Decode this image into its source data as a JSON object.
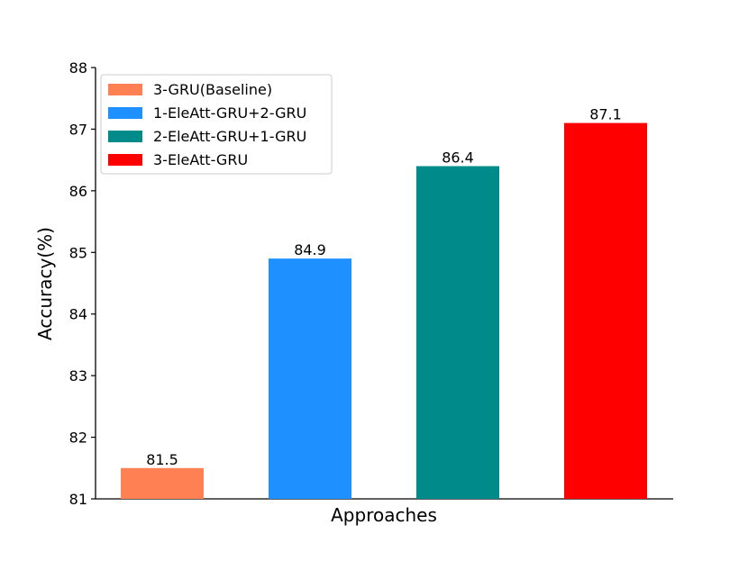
{
  "chart_data": {
    "type": "bar",
    "xlabel": "Approaches",
    "ylabel": "Accuracy(%)",
    "ylim": [
      81,
      88
    ],
    "yticks": [
      81,
      82,
      83,
      84,
      85,
      86,
      87,
      88
    ],
    "grid": false,
    "legend_position": "top-left",
    "series": [
      {
        "name": "3-GRU(Baseline)",
        "value": 81.5,
        "value_label": "81.5",
        "color": "#ff8153"
      },
      {
        "name": "1-EleAtt-GRU+2-GRU",
        "value": 84.9,
        "value_label": "84.9",
        "color": "#1e90ff"
      },
      {
        "name": "2-EleAtt-GRU+1-GRU",
        "value": 86.4,
        "value_label": "86.4",
        "color": "#008b8b"
      },
      {
        "name": "3-EleAtt-GRU",
        "value": 87.1,
        "value_label": "87.1",
        "color": "#ff0000"
      }
    ]
  }
}
